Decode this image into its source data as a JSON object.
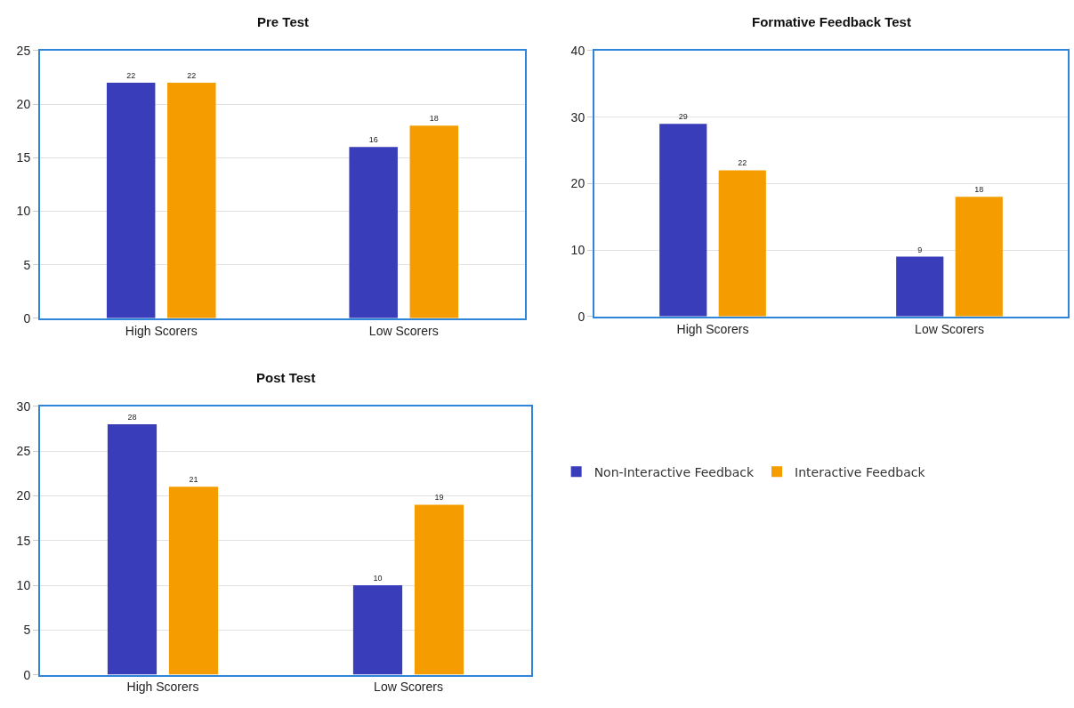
{
  "chart_data": [
    {
      "type": "bar",
      "title": "Pre Test",
      "categories": [
        "High Scorers",
        "Low Scorers"
      ],
      "ylim": [
        0,
        25
      ],
      "yticks": [
        0,
        5,
        10,
        15,
        20,
        25
      ],
      "grid": "y",
      "data_labels": true,
      "legend": "bottom right",
      "series": [
        {
          "name": "Non-Interactive Feedback",
          "color": "#3a3dba",
          "values": [
            22,
            16
          ]
        },
        {
          "name": "Interactive Feedback",
          "color": "#f59d00",
          "values": [
            22,
            18
          ]
        }
      ]
    },
    {
      "type": "bar",
      "title": "Formative Feedback Test",
      "categories": [
        "High Scorers",
        "Low Scorers"
      ],
      "ylim": [
        0,
        40
      ],
      "yticks": [
        0,
        10,
        20,
        30,
        40
      ],
      "grid": "y",
      "data_labels": true,
      "series": [
        {
          "color": "#3a3dba",
          "values": [
            29,
            9
          ]
        },
        {
          "color": "#f59d00",
          "values": [
            22,
            18
          ]
        }
      ]
    },
    {
      "type": "bar",
      "title": "Post Test",
      "categories": [
        "High Scorers",
        "Low Scorers"
      ],
      "ylim": [
        0,
        30
      ],
      "yticks": [
        0,
        5,
        10,
        15,
        20,
        25,
        30
      ],
      "grid": "y",
      "data_labels": true,
      "series": [
        {
          "color": "#3a3dba",
          "values": [
            28,
            10
          ]
        },
        {
          "color": "#f59d00",
          "values": [
            21,
            19
          ]
        }
      ]
    }
  ]
}
